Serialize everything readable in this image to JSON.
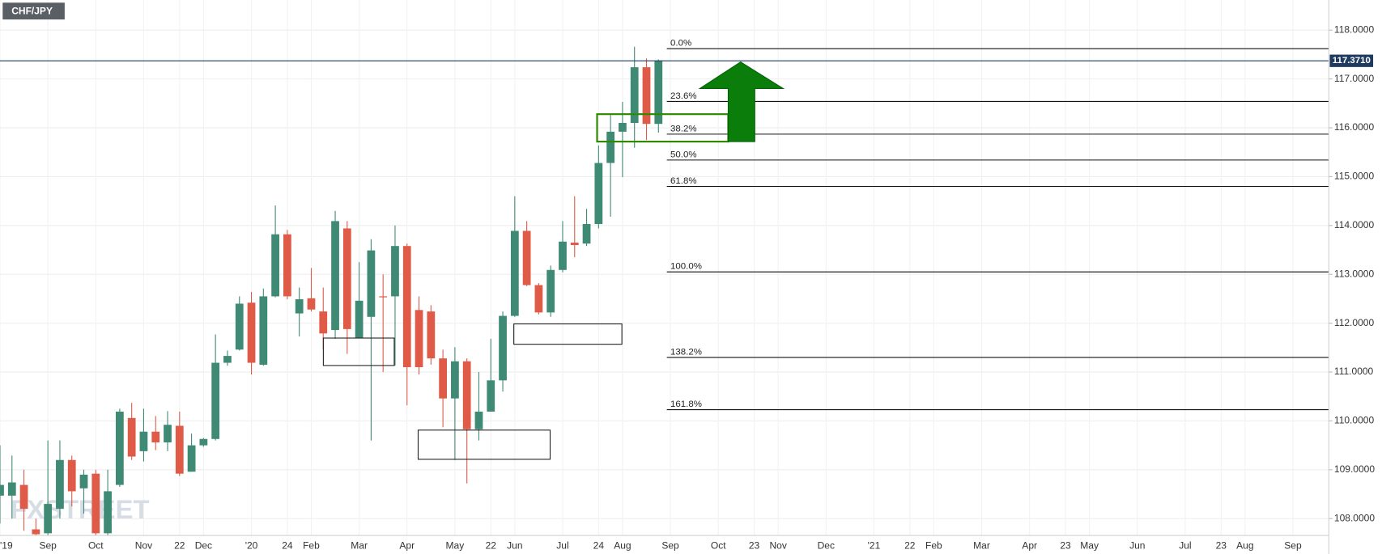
{
  "chart_data": {
    "type": "candlestick",
    "title": "CHF/JPY",
    "watermark": "FXSTREET",
    "up_color": "#3f8a74",
    "down_color": "#e05a48",
    "grid": true,
    "ylim": [
      107.656,
      118.616
    ],
    "yticks": [
      {
        "value": 108,
        "label": "108.0000"
      },
      {
        "value": 109,
        "label": "109.0000"
      },
      {
        "value": 110,
        "label": "110.0000"
      },
      {
        "value": 111,
        "label": "111.0000"
      },
      {
        "value": 112,
        "label": "112.0000"
      },
      {
        "value": 113,
        "label": "113.0000"
      },
      {
        "value": 114,
        "label": "114.0000"
      },
      {
        "value": 115,
        "label": "115.0000"
      },
      {
        "value": 116,
        "label": "116.0000"
      },
      {
        "value": 117,
        "label": "117.0000"
      },
      {
        "value": 118,
        "label": "118.0000"
      }
    ],
    "last_price": {
      "value": 117.371,
      "label": "117.3710",
      "color": "#1f3a5f"
    },
    "fib_levels": [
      {
        "label": "0.0%",
        "value": 117.62
      },
      {
        "label": "23.6%",
        "value": 116.54
      },
      {
        "label": "38.2%",
        "value": 115.87
      },
      {
        "label": "50.0%",
        "value": 115.34
      },
      {
        "label": "61.8%",
        "value": 114.8
      },
      {
        "label": "100.0%",
        "value": 113.05
      },
      {
        "label": "138.2%",
        "value": 111.3
      },
      {
        "label": "161.8%",
        "value": 110.23
      }
    ],
    "categories": [
      "'19",
      null,
      null,
      null,
      "Sep",
      null,
      null,
      null,
      "Oct",
      null,
      null,
      null,
      "Nov",
      null,
      null,
      "22",
      null,
      "Dec",
      null,
      null,
      null,
      "'20",
      null,
      null,
      "24",
      null,
      "Feb",
      null,
      null,
      null,
      "Mar",
      null,
      null,
      null,
      "Apr",
      null,
      null,
      null,
      "May",
      null,
      null,
      "22",
      null,
      "Jun",
      null,
      null,
      null,
      "Jul",
      null,
      null,
      "24",
      null,
      "Aug",
      null,
      null,
      null,
      "Sep",
      null,
      null,
      null,
      "Oct",
      null,
      null,
      "23",
      null,
      "Nov",
      null,
      null,
      null,
      "Dec",
      null,
      null,
      null,
      "'21",
      null,
      null,
      "22",
      null,
      "Feb",
      null,
      null,
      null,
      "Mar",
      null,
      null,
      null,
      "Apr",
      null,
      null,
      "23",
      null,
      "May",
      null,
      null,
      null,
      "Jun",
      null,
      null,
      null,
      "Jul",
      null,
      null,
      "23",
      null,
      "Aug",
      null,
      null,
      null,
      "Sep",
      null,
      null
    ],
    "open": [
      108.47,
      108.47,
      108.69,
      107.78,
      107.7,
      108.2,
      109.2,
      108.62,
      108.92,
      107.7,
      108.69,
      110.06,
      109.38,
      109.78,
      109.56,
      109.9,
      108.96,
      109.5,
      109.63,
      111.19,
      111.46,
      112.42,
      111.15,
      112.55,
      113.82,
      112.2,
      112.51,
      112.24,
      111.86,
      113.94,
      111.7,
      112.13,
      112.55,
      112.55,
      113.58,
      112.27,
      112.24,
      111.28,
      110.46,
      111.22,
      109.83,
      110.19,
      110.83,
      112.15,
      113.89,
      112.78,
      112.22,
      113.09,
      113.65,
      113.63,
      114.03,
      115.28,
      115.92,
      116.1,
      117.24,
      116.08,
      null,
      null,
      null,
      null,
      null,
      null,
      null,
      null,
      null,
      null,
      null,
      null,
      null,
      null,
      null,
      null,
      null,
      null,
      null,
      null,
      null,
      null,
      null,
      null,
      null,
      null,
      null,
      null,
      null,
      null,
      null,
      null,
      null,
      null,
      null,
      null,
      null,
      null,
      null,
      null,
      null,
      null,
      null,
      null,
      null,
      null,
      null,
      null,
      null,
      null,
      null,
      null,
      null,
      null,
      null
    ],
    "high": [
      109.5,
      109.29,
      109.0,
      108.0,
      109.6,
      109.6,
      109.29,
      109.0,
      109.0,
      109.0,
      110.25,
      110.37,
      110.25,
      110.1,
      110.2,
      110.19,
      109.74,
      109.65,
      111.77,
      111.44,
      112.55,
      112.64,
      112.71,
      114.41,
      113.91,
      112.73,
      113.13,
      112.73,
      114.3,
      114.09,
      113.25,
      113.72,
      113.0,
      114.0,
      113.63,
      112.55,
      112.37,
      111.46,
      111.51,
      111.28,
      111.0,
      111.68,
      112.24,
      114.6,
      114.09,
      112.82,
      113.18,
      114.09,
      114.6,
      114.34,
      115.64,
      116.26,
      116.53,
      117.66,
      117.42,
      117.4,
      null,
      null,
      null,
      null,
      null,
      null,
      null,
      null,
      null,
      null,
      null,
      null,
      null,
      null,
      null,
      null,
      null,
      null,
      null,
      null,
      null,
      null,
      null,
      null,
      null,
      null,
      null,
      null,
      null,
      null,
      null,
      null,
      null,
      null,
      null,
      null,
      null,
      null,
      null,
      null,
      null,
      null,
      null,
      null,
      null,
      null,
      null,
      null,
      null,
      null,
      null,
      null,
      null,
      null,
      null
    ],
    "low": [
      107.9,
      108.0,
      107.75,
      107.66,
      107.66,
      108.0,
      108.25,
      108.1,
      107.66,
      107.66,
      108.65,
      109.2,
      109.17,
      109.4,
      109.38,
      108.87,
      108.96,
      109.47,
      109.6,
      111.13,
      111.44,
      110.95,
      111.13,
      112.53,
      112.49,
      111.73,
      112.24,
      111.46,
      111.68,
      111.37,
      111.7,
      109.6,
      111.0,
      111.13,
      110.32,
      110.95,
      111.15,
      109.87,
      109.2,
      108.72,
      109.6,
      110.19,
      110.6,
      112.13,
      112.76,
      112.18,
      112.13,
      113.04,
      113.35,
      113.58,
      113.94,
      114.18,
      114.99,
      115.59,
      115.75,
      115.9,
      null,
      null,
      null,
      null,
      null,
      null,
      null,
      null,
      null,
      null,
      null,
      null,
      null,
      null,
      null,
      null,
      null,
      null,
      null,
      null,
      null,
      null,
      null,
      null,
      null,
      null,
      null,
      null,
      null,
      null,
      null,
      null,
      null,
      null,
      null,
      null,
      null,
      null,
      null,
      null,
      null,
      null,
      null,
      null,
      null,
      null,
      null,
      null,
      null,
      null,
      null,
      null,
      null,
      null,
      null
    ],
    "close": [
      108.69,
      108.74,
      108.2,
      107.68,
      108.3,
      109.2,
      108.56,
      108.9,
      107.7,
      108.56,
      110.19,
      109.27,
      109.78,
      109.56,
      109.92,
      108.92,
      109.5,
      109.63,
      111.19,
      111.33,
      112.4,
      111.19,
      112.55,
      113.82,
      112.55,
      112.49,
      112.28,
      111.79,
      114.09,
      111.88,
      112.46,
      113.49,
      112.53,
      113.58,
      111.1,
      111.1,
      111.28,
      110.46,
      111.22,
      109.83,
      110.19,
      110.83,
      112.15,
      113.89,
      112.78,
      112.22,
      113.09,
      113.67,
      113.6,
      114.03,
      115.28,
      115.92,
      116.1,
      117.24,
      116.08,
      117.37,
      null,
      null,
      null,
      null,
      null,
      null,
      null,
      null,
      null,
      null,
      null,
      null,
      null,
      null,
      null,
      null,
      null,
      null,
      null,
      null,
      null,
      null,
      null,
      null,
      null,
      null,
      null,
      null,
      null,
      null,
      null,
      null,
      null,
      null,
      null,
      null,
      null,
      null,
      null,
      null,
      null,
      null,
      null,
      null,
      null,
      null,
      null,
      null,
      null,
      null,
      null,
      null,
      null,
      null,
      null
    ]
  }
}
